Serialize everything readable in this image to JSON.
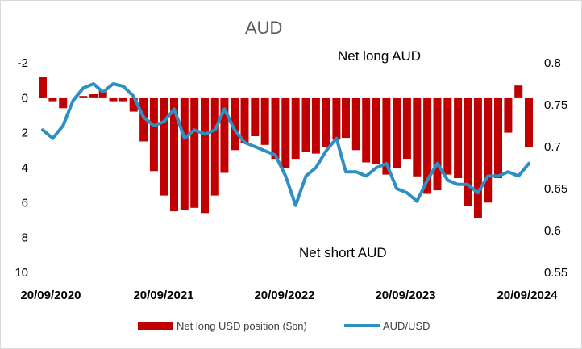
{
  "chart_data": {
    "type": "bar+line",
    "title": "AUD",
    "annotations": {
      "top": "Net long AUD",
      "bottom": "Net short AUD"
    },
    "x_tick_labels": [
      "20/09/2020",
      "20/09/2021",
      "20/09/2022",
      "20/09/2023",
      "20/09/2024"
    ],
    "x_range": [
      "2020-09-20",
      "2024-09-20"
    ],
    "left_axis": {
      "ticks": [
        "-2",
        "0",
        "2",
        "4",
        "6",
        "8",
        "10"
      ],
      "range": [
        -2,
        10
      ],
      "inverted": true
    },
    "right_axis": {
      "ticks": [
        "0.8",
        "0.75",
        "0.7",
        "0.65",
        "0.6",
        "0.55"
      ],
      "range": [
        0.55,
        0.8
      ]
    },
    "colors": {
      "bars": "#c00000",
      "line": "#2e8fc3"
    },
    "legend": {
      "placement": "bottom"
    },
    "series": [
      {
        "name": "Net long USD position ($bn)",
        "kind": "bar",
        "axis": "left",
        "x": [
          "2020-09-20",
          "2020-10-20",
          "2020-11-20",
          "2020-12-20",
          "2021-01-20",
          "2021-02-20",
          "2021-03-20",
          "2021-04-20",
          "2021-05-20",
          "2021-06-20",
          "2021-07-20",
          "2021-08-20",
          "2021-09-20",
          "2021-10-20",
          "2021-11-20",
          "2021-12-20",
          "2022-01-20",
          "2022-02-20",
          "2022-03-20",
          "2022-04-20",
          "2022-05-20",
          "2022-06-20",
          "2022-07-20",
          "2022-08-20",
          "2022-09-20",
          "2022-10-20",
          "2022-11-20",
          "2022-12-20",
          "2023-01-20",
          "2023-02-20",
          "2023-03-20",
          "2023-04-20",
          "2023-05-20",
          "2023-06-20",
          "2023-07-20",
          "2023-08-20",
          "2023-09-20",
          "2023-10-20",
          "2023-11-20",
          "2023-12-20",
          "2024-01-20",
          "2024-02-20",
          "2024-03-20",
          "2024-04-20",
          "2024-05-20",
          "2024-06-20",
          "2024-07-20",
          "2024-08-20",
          "2024-09-20"
        ],
        "values": [
          -1.2,
          0.2,
          0.6,
          0.0,
          -0.1,
          -0.2,
          -0.4,
          0.2,
          0.2,
          0.8,
          2.5,
          4.2,
          5.6,
          6.5,
          6.4,
          6.3,
          6.6,
          5.6,
          4.3,
          3.0,
          2.6,
          2.2,
          2.7,
          3.5,
          4.0,
          3.5,
          3.1,
          3.2,
          2.8,
          2.4,
          2.3,
          3.0,
          3.7,
          3.8,
          4.4,
          4.0,
          3.5,
          4.5,
          5.5,
          5.3,
          4.4,
          4.6,
          6.2,
          6.9,
          6.0,
          4.6,
          2.0,
          -0.7,
          2.8
        ]
      },
      {
        "name": "AUD/USD",
        "kind": "line",
        "axis": "right",
        "x": [
          "2020-09-20",
          "2020-10-20",
          "2020-11-20",
          "2020-12-20",
          "2021-01-20",
          "2021-02-20",
          "2021-03-20",
          "2021-04-20",
          "2021-05-20",
          "2021-06-20",
          "2021-07-20",
          "2021-08-20",
          "2021-09-20",
          "2021-10-20",
          "2021-11-20",
          "2021-12-20",
          "2022-01-20",
          "2022-02-20",
          "2022-03-20",
          "2022-04-20",
          "2022-05-20",
          "2022-06-20",
          "2022-07-20",
          "2022-08-20",
          "2022-09-20",
          "2022-10-20",
          "2022-11-20",
          "2022-12-20",
          "2023-01-20",
          "2023-02-20",
          "2023-03-20",
          "2023-04-20",
          "2023-05-20",
          "2023-06-20",
          "2023-07-20",
          "2023-08-20",
          "2023-09-20",
          "2023-10-20",
          "2023-11-20",
          "2023-12-20",
          "2024-01-20",
          "2024-02-20",
          "2024-03-20",
          "2024-04-20",
          "2024-05-20",
          "2024-06-20",
          "2024-07-20",
          "2024-08-20",
          "2024-09-20"
        ],
        "values": [
          0.72,
          0.71,
          0.725,
          0.755,
          0.77,
          0.775,
          0.765,
          0.775,
          0.772,
          0.76,
          0.735,
          0.725,
          0.73,
          0.745,
          0.71,
          0.72,
          0.715,
          0.72,
          0.745,
          0.72,
          0.705,
          0.7,
          0.695,
          0.69,
          0.665,
          0.63,
          0.665,
          0.675,
          0.695,
          0.71,
          0.67,
          0.67,
          0.665,
          0.675,
          0.68,
          0.65,
          0.645,
          0.635,
          0.66,
          0.68,
          0.66,
          0.655,
          0.655,
          0.645,
          0.665,
          0.665,
          0.67,
          0.665,
          0.68
        ]
      }
    ]
  }
}
